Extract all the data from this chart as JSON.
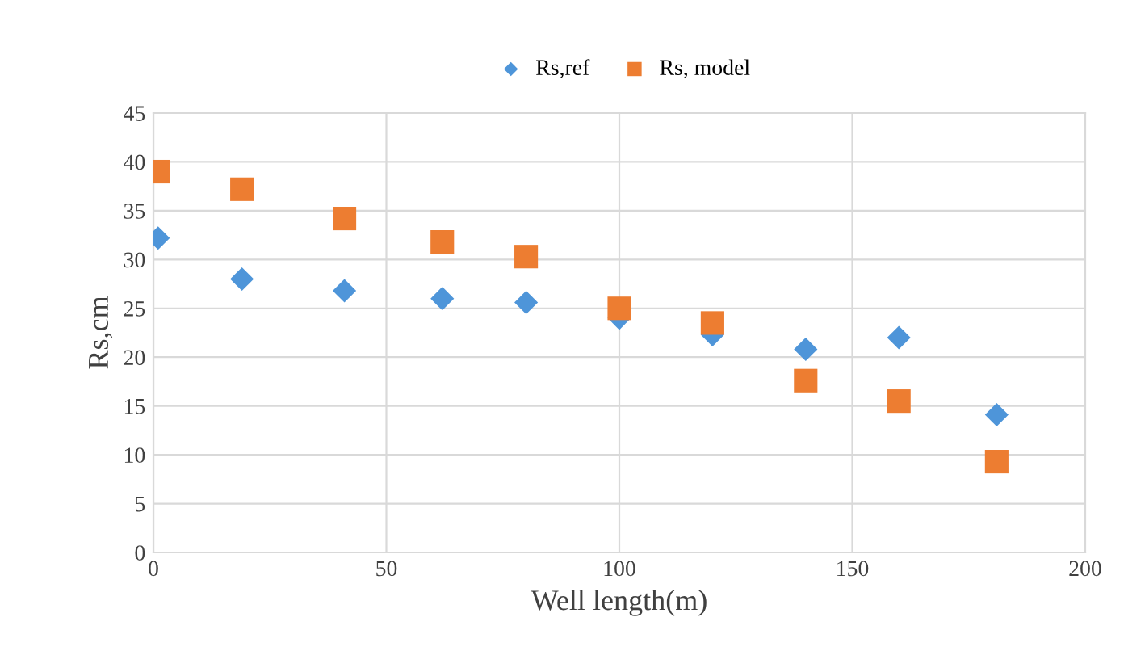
{
  "chart_data": {
    "type": "scatter",
    "xlabel": "Well length(m)",
    "ylabel": "Rs,cm",
    "x": [
      1,
      19,
      41,
      62,
      80,
      100,
      120,
      140,
      160,
      181
    ],
    "series": [
      {
        "name": "Rs,ref",
        "color": "#4e95d9",
        "marker": "diamond",
        "values": [
          32.2,
          28,
          26.8,
          26,
          25.6,
          24,
          22.3,
          20.8,
          22,
          14.1
        ]
      },
      {
        "name": "Rs, model",
        "color": "#ed7d31",
        "marker": "square",
        "values": [
          39,
          37.2,
          34.2,
          31.8,
          30.3,
          25,
          23.5,
          17.6,
          15.5,
          9.3
        ]
      }
    ],
    "xlim": [
      0,
      200
    ],
    "xticks": [
      0,
      50,
      100,
      150,
      200
    ],
    "ylim": [
      0,
      45
    ],
    "yticks": [
      0,
      5,
      10,
      15,
      20,
      25,
      30,
      35,
      40,
      45
    ],
    "grid": true,
    "legend": "top"
  }
}
